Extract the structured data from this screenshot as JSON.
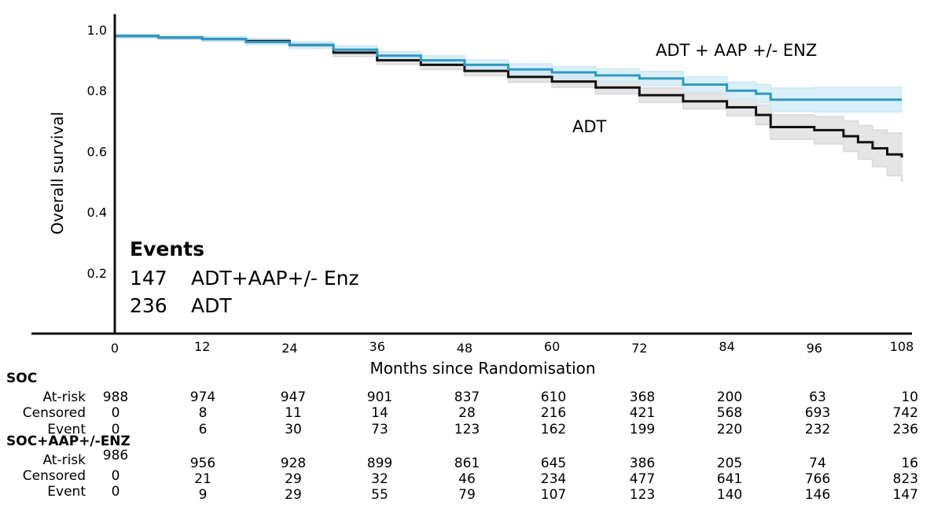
{
  "chart_data": {
    "type": "line",
    "title": "",
    "xlabel": "Months since Randomisation",
    "ylabel": "Overall survival",
    "xlim": [
      0,
      108
    ],
    "ylim": [
      0,
      1.0
    ],
    "x_ticks": [
      "0",
      "12",
      "24",
      "36",
      "48",
      "60",
      "72",
      "84",
      "96",
      "108"
    ],
    "y_ticks": [
      "0.2",
      "0.4",
      "0.6",
      "0.8",
      "1.0"
    ],
    "series": [
      {
        "name": "ADT + AAP +/- ENZ",
        "color": "#2e9ac4",
        "band_color": "#cfeaf6",
        "x": [
          0,
          6,
          12,
          18,
          24,
          30,
          36,
          42,
          48,
          54,
          60,
          66,
          72,
          78,
          84,
          88,
          90,
          96,
          102,
          108
        ],
        "y": [
          0.98,
          0.975,
          0.97,
          0.96,
          0.95,
          0.935,
          0.915,
          0.9,
          0.885,
          0.87,
          0.86,
          0.85,
          0.84,
          0.82,
          0.8,
          0.79,
          0.77,
          0.77,
          0.77,
          0.77
        ],
        "upper": [
          0.985,
          0.98,
          0.977,
          0.968,
          0.96,
          0.947,
          0.928,
          0.915,
          0.901,
          0.888,
          0.879,
          0.871,
          0.863,
          0.845,
          0.828,
          0.82,
          0.808,
          0.81,
          0.81,
          0.81
        ],
        "lower": [
          0.975,
          0.97,
          0.963,
          0.952,
          0.94,
          0.923,
          0.902,
          0.885,
          0.869,
          0.852,
          0.841,
          0.829,
          0.817,
          0.795,
          0.772,
          0.76,
          0.732,
          0.73,
          0.73,
          0.73
        ]
      },
      {
        "name": "ADT",
        "color": "#111111",
        "band_color": "#dcdcdc",
        "x": [
          0,
          6,
          12,
          18,
          24,
          30,
          36,
          42,
          48,
          54,
          60,
          66,
          72,
          78,
          84,
          88,
          90,
          96,
          100,
          102,
          104,
          106,
          108
        ],
        "y": [
          0.98,
          0.975,
          0.97,
          0.963,
          0.95,
          0.925,
          0.9,
          0.885,
          0.865,
          0.845,
          0.83,
          0.81,
          0.785,
          0.765,
          0.745,
          0.72,
          0.68,
          0.67,
          0.65,
          0.63,
          0.61,
          0.59,
          0.58
        ],
        "upper": [
          0.985,
          0.98,
          0.977,
          0.971,
          0.96,
          0.937,
          0.913,
          0.9,
          0.881,
          0.862,
          0.849,
          0.831,
          0.809,
          0.79,
          0.773,
          0.752,
          0.72,
          0.715,
          0.7,
          0.685,
          0.67,
          0.66,
          0.66
        ],
        "lower": [
          0.975,
          0.97,
          0.963,
          0.955,
          0.94,
          0.913,
          0.887,
          0.87,
          0.849,
          0.828,
          0.811,
          0.789,
          0.761,
          0.74,
          0.717,
          0.688,
          0.64,
          0.625,
          0.6,
          0.575,
          0.55,
          0.52,
          0.5
        ]
      }
    ],
    "curve_labels": [
      {
        "text": "ADT + AAP +/- ENZ",
        "series": 0
      },
      {
        "text": "ADT",
        "series": 1
      }
    ],
    "legend": "none",
    "grid": false
  },
  "events": {
    "title": "Events",
    "rows": [
      {
        "count": "147",
        "label": "ADT+AAP+/- Enz"
      },
      {
        "count": "236",
        "label": "ADT"
      }
    ]
  },
  "risk_table": {
    "groups": [
      {
        "name": "SOC",
        "rows": [
          {
            "label": "At-risk",
            "values": [
              "988",
              "974",
              "947",
              "901",
              "837",
              "610",
              "368",
              "200",
              "63",
              "10"
            ]
          },
          {
            "label": "Censored",
            "values": [
              "0",
              "8",
              "11",
              "14",
              "28",
              "216",
              "421",
              "568",
              "693",
              "742"
            ]
          },
          {
            "label": "Event",
            "values": [
              "0",
              "6",
              "30",
              "73",
              "123",
              "162",
              "199",
              "220",
              "232",
              "236"
            ]
          }
        ]
      },
      {
        "name": "SOC+AAP+/-ENZ",
        "rows": [
          {
            "label": "At-risk",
            "values": [
              "986",
              "956",
              "928",
              "899",
              "861",
              "645",
              "386",
              "205",
              "74",
              "16"
            ]
          },
          {
            "label": "Censored",
            "values": [
              "0",
              "21",
              "29",
              "32",
              "46",
              "234",
              "477",
              "641",
              "766",
              "823"
            ]
          },
          {
            "label": "Event",
            "values": [
              "0",
              "9",
              "29",
              "55",
              "79",
              "107",
              "123",
              "140",
              "146",
              "147"
            ]
          }
        ]
      }
    ]
  }
}
